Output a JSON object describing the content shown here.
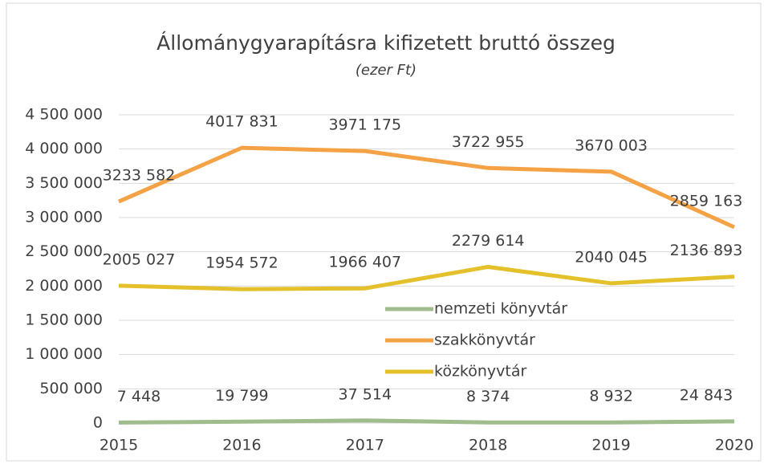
{
  "chart_data": {
    "type": "line",
    "title": "Állománygyarapításra kifizetett bruttó összeg",
    "subtitle": "(ezer Ft)",
    "x": [
      2015,
      2016,
      2017,
      2018,
      2019,
      2020
    ],
    "xlim": [
      2015,
      2020
    ],
    "xticks": [
      2015,
      2016,
      2017,
      2018,
      2019,
      2020
    ],
    "ylim": [
      0,
      4500000
    ],
    "yticks": [
      0,
      {
        "value": 500000,
        "label": "500 000"
      },
      {
        "value": 1000000,
        "label": "1 000 000"
      },
      {
        "value": 1500000,
        "label": "1 500 000"
      },
      {
        "value": 2000000,
        "label": "2 000 000"
      },
      {
        "value": 2500000,
        "label": "2 500 000"
      },
      {
        "value": 3000000,
        "label": "3 000 000"
      },
      {
        "value": 3500000,
        "label": "3 500 000"
      },
      {
        "value": 4000000,
        "label": "4 000 000"
      },
      {
        "value": 4500000,
        "label": "4 500 000"
      }
    ],
    "grid": true,
    "series": [
      {
        "name": "nemzeti könyvtár",
        "color": "#9fbc8c",
        "values": [
          7448,
          19799,
          37514,
          8374,
          8932,
          24843
        ],
        "value_labels": [
          "7 448",
          "19 799",
          "37 514",
          "8 374",
          "8 932",
          "24 843"
        ]
      },
      {
        "name": "szakkönyvtár",
        "color": "#f4a245",
        "values": [
          3233582,
          4017831,
          3971175,
          3722955,
          3670003,
          2859163
        ],
        "value_labels": [
          "3233 582",
          "4017 831",
          "3971 175",
          "3722 955",
          "3670 003",
          "2859 163"
        ]
      },
      {
        "name": "közkönyvtár",
        "color": "#e4c02a",
        "values": [
          2005027,
          1954572,
          1966407,
          2279614,
          2040045,
          2136893
        ],
        "value_labels": [
          "2005 027",
          "1954 572",
          "1966 407",
          "2279 614",
          "2040 045",
          "2136 893"
        ]
      }
    ]
  }
}
